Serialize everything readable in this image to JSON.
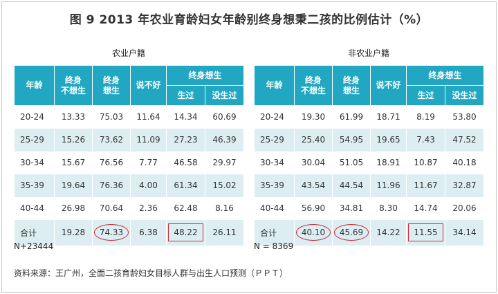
{
  "title": "图 9  2013 年农业育龄妇女年龄别终身想秉二孩的比例估计（%）",
  "headers": {
    "age": "年龄",
    "no_want": "终身\n不想生",
    "want": "终身\n想生",
    "unsure": "说不好",
    "want_group": "终身想生",
    "had": "生过",
    "not_had": "没生过"
  },
  "agri": {
    "subtitle": "农业户籍",
    "rows": [
      {
        "age": "20-24",
        "no_want": "13.33",
        "want": "75.03",
        "unsure": "11.64",
        "had": "14.34",
        "not_had": "60.69"
      },
      {
        "age": "25-29",
        "no_want": "15.26",
        "want": "73.62",
        "unsure": "11.09",
        "had": "27.23",
        "not_had": "46.39"
      },
      {
        "age": "30-34",
        "no_want": "15.67",
        "want": "76.56",
        "unsure": "7.77",
        "had": "46.58",
        "not_had": "29.97"
      },
      {
        "age": "35-39",
        "no_want": "19.64",
        "want": "76.36",
        "unsure": "4.00",
        "had": "61.34",
        "not_had": "15.02"
      },
      {
        "age": "40-44",
        "no_want": "26.98",
        "want": "70.64",
        "unsure": "2.36",
        "had": "62.48",
        "not_had": "8.16"
      },
      {
        "age": "合计",
        "no_want": "19.28",
        "want": "74.33",
        "unsure": "6.38",
        "had": "48.22",
        "not_had": "26.11"
      }
    ],
    "note": "N+23444"
  },
  "nonagri": {
    "subtitle": "非农业户籍",
    "rows": [
      {
        "age": "20-24",
        "no_want": "19.30",
        "want": "61.99",
        "unsure": "18.71",
        "had": "8.19",
        "not_had": "53.80"
      },
      {
        "age": "25-29",
        "no_want": "25.40",
        "want": "54.95",
        "unsure": "19.65",
        "had": "7.43",
        "not_had": "47.52"
      },
      {
        "age": "30-34",
        "no_want": "30.04",
        "want": "51.05",
        "unsure": "18.91",
        "had": "10.87",
        "not_had": "40.18"
      },
      {
        "age": "35-39",
        "no_want": "43.54",
        "want": "44.54",
        "unsure": "11.96",
        "had": "11.67",
        "not_had": "32.87"
      },
      {
        "age": "40-44",
        "no_want": "56.90",
        "want": "34.81",
        "unsure": "8.30",
        "had": "14.74",
        "not_had": "20.06"
      },
      {
        "age": "合计",
        "no_want": "40.10",
        "want": "45.69",
        "unsure": "14.22",
        "had": "11.55",
        "not_had": "34.14"
      }
    ],
    "note": "N = 8369"
  },
  "source": "资料来源：王广州，全面二孩育龄妇女目标人群与出生人口预测（ＰＰＴ）",
  "colors": {
    "header": "#21a7c1",
    "stripe": "#ddeef2",
    "highlight": "#c8283a"
  }
}
